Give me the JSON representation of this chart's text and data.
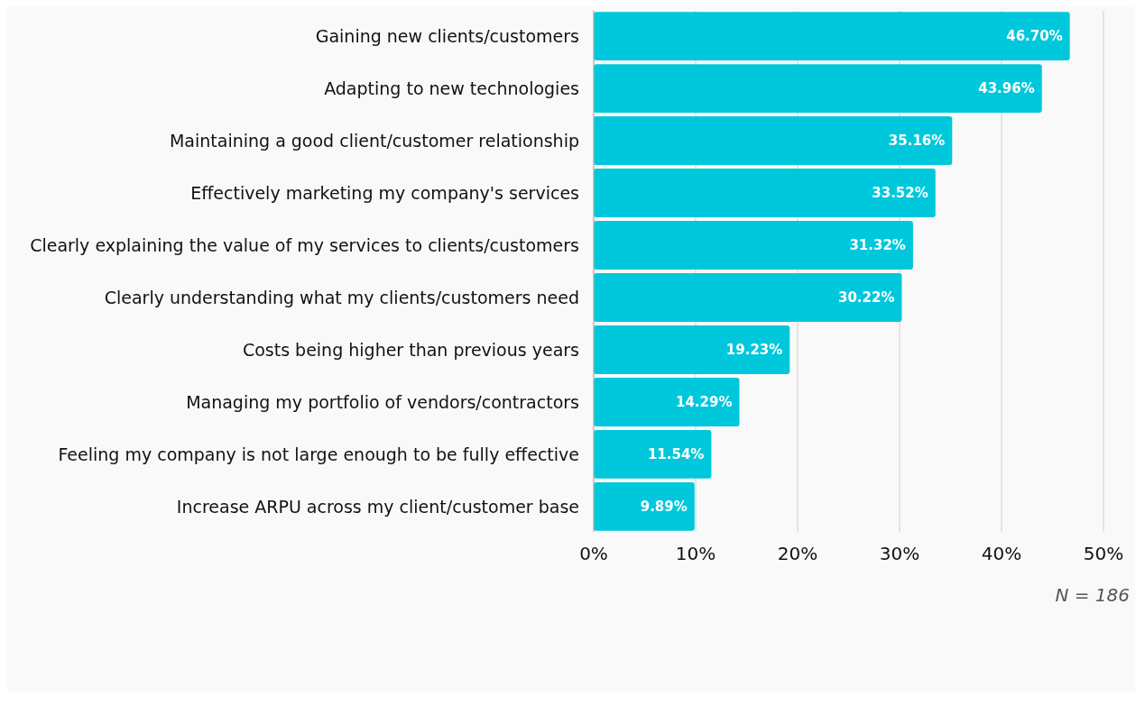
{
  "chart_data": {
    "type": "bar",
    "orientation": "horizontal",
    "categories": [
      "Gaining new clients/customers",
      "Adapting to new technologies",
      "Maintaining a good client/customer relationship",
      "Effectively marketing my company's services",
      "Clearly explaining the value of my services to clients/customers",
      "Clearly understanding what my clients/customers need",
      "Costs being higher than previous years",
      "Managing my portfolio of vendors/contractors",
      "Feeling my company is not large enough to be fully effective",
      "Increase ARPU across my client/customer base"
    ],
    "values": [
      46.7,
      43.96,
      35.16,
      33.52,
      31.32,
      30.22,
      19.23,
      14.29,
      11.54,
      9.89
    ],
    "value_labels": [
      "46.70%",
      "43.96%",
      "35.16%",
      "33.52%",
      "31.32%",
      "30.22%",
      "19.23%",
      "14.29%",
      "11.54%",
      "9.89%"
    ],
    "color": "#00c8dc",
    "xlim": [
      0,
      50
    ],
    "xticks": [
      {
        "value": 0,
        "label": "0%"
      },
      {
        "value": 10,
        "label": "10%"
      },
      {
        "value": 20,
        "label": "20%"
      },
      {
        "value": 30,
        "label": "30%"
      },
      {
        "value": 40,
        "label": "40%"
      },
      {
        "value": 50,
        "label": "50%"
      }
    ],
    "grid": "x",
    "annotations": [
      "N = 186"
    ]
  }
}
